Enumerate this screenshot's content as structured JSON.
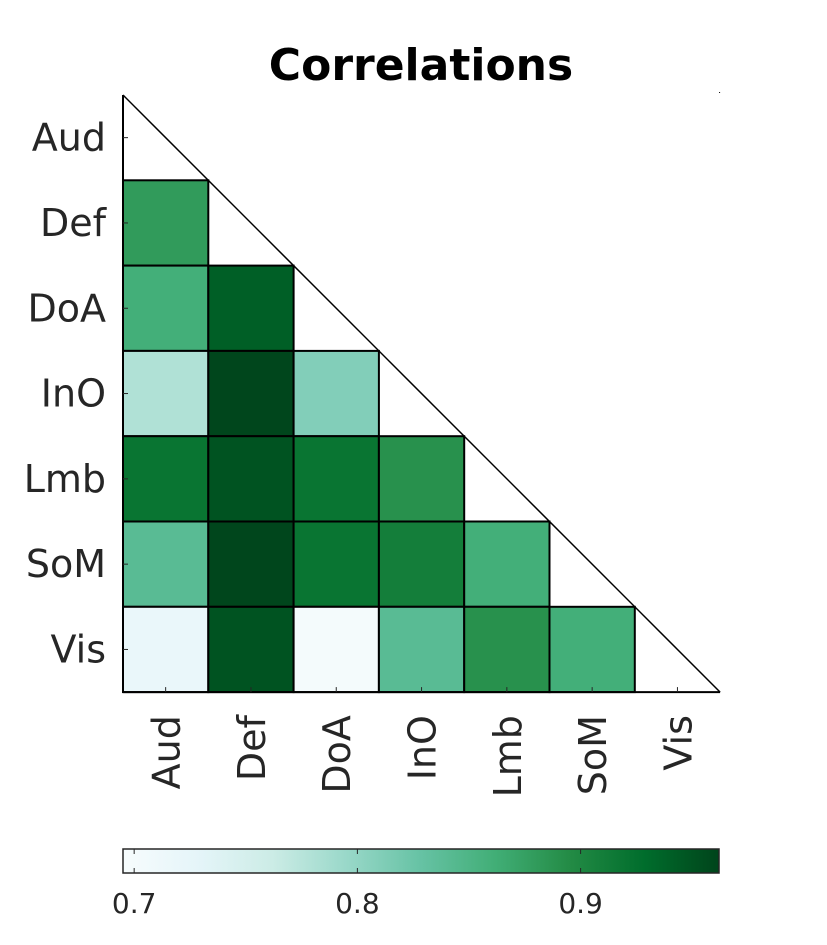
{
  "chart_data": {
    "type": "heatmap",
    "title": "Correlations",
    "rows": [
      "Aud",
      "Def",
      "DoA",
      "InO",
      "Lmb",
      "SoM",
      "Vis"
    ],
    "cols": [
      "Aud",
      "Def",
      "DoA",
      "InO",
      "Lmb",
      "SoM",
      "Vis"
    ],
    "matrix": [
      [
        null,
        null,
        null,
        null,
        null,
        null,
        null
      ],
      [
        0.88,
        null,
        null,
        null,
        null,
        null,
        null
      ],
      [
        0.86,
        0.94,
        null,
        null,
        null,
        null,
        null
      ],
      [
        0.78,
        0.96,
        0.81,
        null,
        null,
        null,
        null
      ],
      [
        0.92,
        0.95,
        0.92,
        0.89,
        null,
        null,
        null
      ],
      [
        0.84,
        0.96,
        0.92,
        0.91,
        0.86,
        null,
        null
      ],
      [
        0.72,
        0.95,
        0.7,
        0.84,
        0.89,
        0.86,
        null
      ]
    ],
    "triangle": "lower",
    "colorbar": {
      "min": 0.695,
      "max": 0.962,
      "ticks": [
        0.7,
        0.8,
        0.9
      ],
      "tick_labels": [
        "0.7",
        "0.8",
        "0.9"
      ],
      "colormap": [
        "#f7fcfd",
        "#e5f5f9",
        "#ccece6",
        "#99d8c9",
        "#66c2a4",
        "#41ae76",
        "#238b45",
        "#006d2c",
        "#00441b"
      ],
      "placement": "bottom"
    },
    "grid": false
  }
}
